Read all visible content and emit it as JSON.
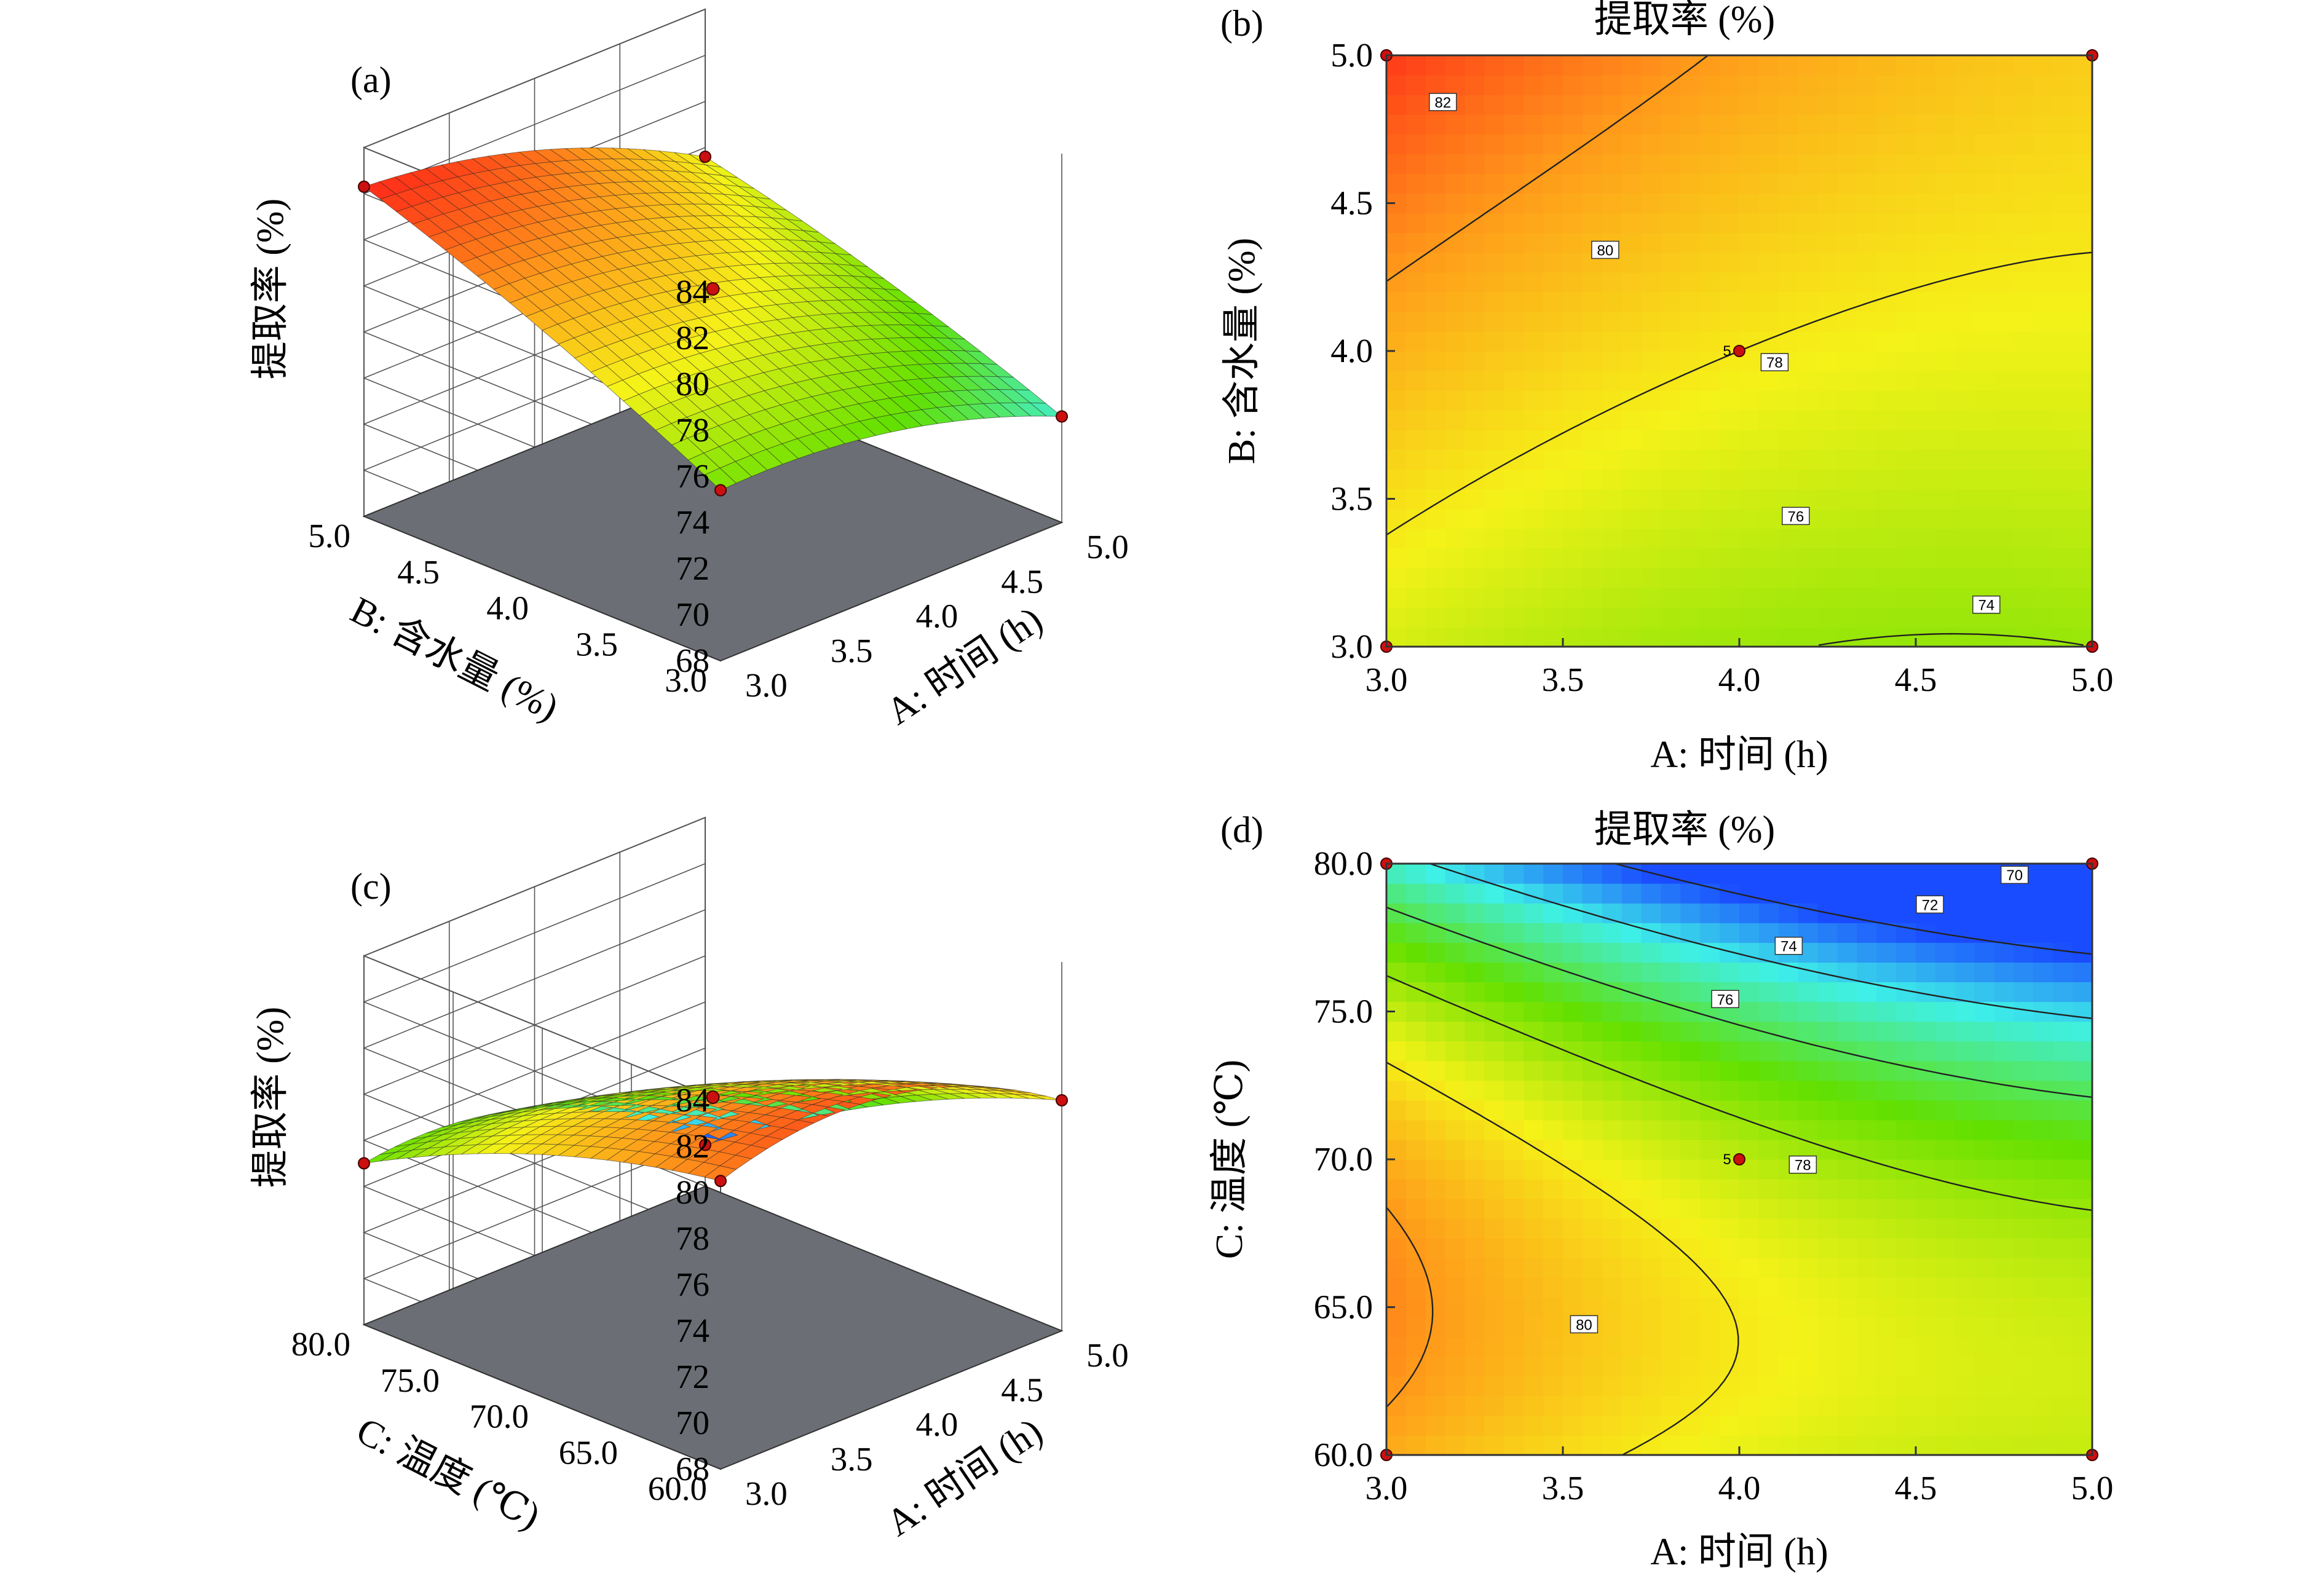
{
  "figure": {
    "panels": {
      "a": "(a)",
      "b": "(b)",
      "c": "(c)",
      "d": "(d)"
    }
  },
  "colors": {
    "low": "#1a4cff",
    "cyan": "#3ef0e8",
    "green": "#62e000",
    "yellow": "#f5f218",
    "orange": "#ff9a1a",
    "red": "#ff2018",
    "floor": "#6b6e74",
    "design_point": "#cc1010",
    "corner_point": "#e070c0"
  },
  "chart_data": [
    {
      "id": "a",
      "type": "surface3d",
      "zlabel": "提取率 (%)",
      "xlabel": "A: 时间 (h)",
      "ylabel": "B: 含水量 (%)",
      "z_ticks": [
        "68",
        "70",
        "72",
        "74",
        "76",
        "78",
        "80",
        "82",
        "84"
      ],
      "x_ticks": [
        "3.0",
        "3.5",
        "4.0",
        "4.5",
        "5.0"
      ],
      "y_ticks": [
        "3.0",
        "3.5",
        "4.0",
        "4.5",
        "5.0"
      ],
      "zlim": [
        68,
        84
      ],
      "xlim": [
        3.0,
        5.0
      ],
      "ylim": [
        3.0,
        5.0
      ],
      "surface_corners": {
        "A3_B3": 75.4,
        "A5_B3": 72.6,
        "A3_B5": 82.3,
        "A5_B5": 77.6
      },
      "center": {
        "A": 4.0,
        "B": 4.0,
        "z": 78.0
      }
    },
    {
      "id": "b",
      "type": "contour",
      "title": "提取率 (%)",
      "xlabel": "A: 时间 (h)",
      "ylabel": "B: 含水量 (%)",
      "x_ticks": [
        "3.0",
        "3.5",
        "4.0",
        "4.5",
        "5.0"
      ],
      "y_ticks": [
        "3.0",
        "3.5",
        "4.0",
        "4.5",
        "5.0"
      ],
      "xlim": [
        3.0,
        5.0
      ],
      "ylim": [
        3.0,
        5.0
      ],
      "levels": [
        "74",
        "76",
        "78",
        "80",
        "82"
      ],
      "center_label": "5",
      "center": {
        "x": 4.0,
        "y": 4.0
      }
    },
    {
      "id": "c",
      "type": "surface3d",
      "zlabel": "提取率 (%)",
      "xlabel": "A: 时间 (h)",
      "ylabel": "C: 温度 (℃)",
      "z_ticks": [
        "68",
        "70",
        "72",
        "74",
        "76",
        "78",
        "80",
        "82",
        "84"
      ],
      "x_ticks": [
        "3.0",
        "3.5",
        "4.0",
        "4.5",
        "5.0"
      ],
      "y_ticks": [
        "60.0",
        "65.0",
        "70.0",
        "75.0",
        "80.0"
      ],
      "zlim": [
        68,
        84
      ],
      "xlim": [
        3.0,
        5.0
      ],
      "ylim": [
        60.0,
        80.0
      ],
      "surface_corners": {
        "A3_C60": 80.5,
        "A5_C60": 78.0,
        "A3_C80": 75.0,
        "A5_C80": 69.8
      },
      "center": {
        "A": 4.0,
        "C": 70.0,
        "z": 78.0
      }
    },
    {
      "id": "d",
      "type": "contour",
      "title": "提取率 (%)",
      "xlabel": "A: 时间 (h)",
      "ylabel": "C: 温度 (℃)",
      "x_ticks": [
        "3.0",
        "3.5",
        "4.0",
        "4.5",
        "5.0"
      ],
      "y_ticks": [
        "60.0",
        "65.0",
        "70.0",
        "75.0",
        "80.0"
      ],
      "xlim": [
        3.0,
        5.0
      ],
      "ylim": [
        60.0,
        80.0
      ],
      "levels": [
        "70",
        "72",
        "74",
        "76",
        "78",
        "80"
      ],
      "center_label": "5",
      "center": {
        "x": 4.0,
        "y": 70.0
      }
    }
  ]
}
